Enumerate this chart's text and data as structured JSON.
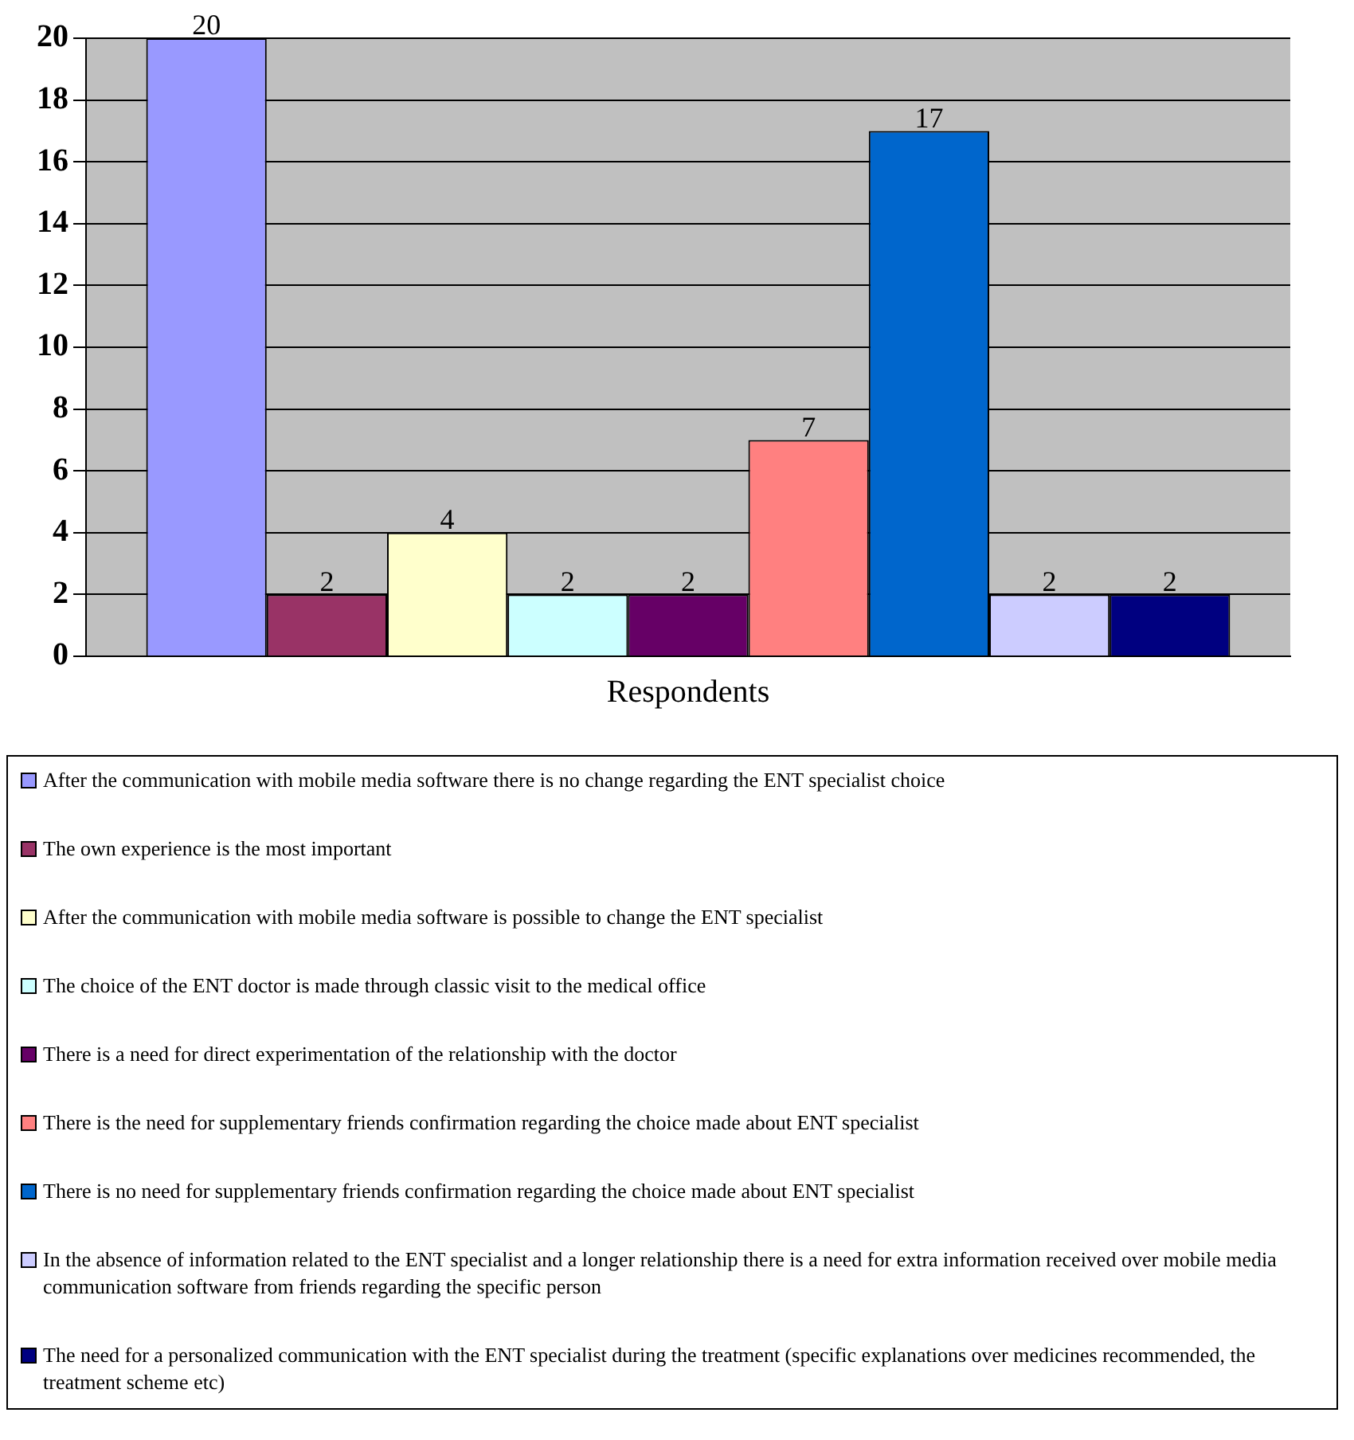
{
  "chart_data": {
    "type": "bar",
    "categories": [
      "Respondents"
    ],
    "series": [
      {
        "name": "After the communication with mobile media software there is no change regarding the ENT specialist choice",
        "color": "#9999ff",
        "values": [
          20
        ]
      },
      {
        "name": "The own experience is the most important",
        "color": "#993366",
        "values": [
          2
        ]
      },
      {
        "name": "After the communication with mobile media software is possible to change the ENT specialist",
        "color": "#ffffcc",
        "values": [
          4
        ]
      },
      {
        "name": "The choice of the ENT doctor is made through classic visit to the medical office",
        "color": "#ccffff",
        "values": [
          2
        ]
      },
      {
        "name": "There is a need for direct experimentation of the relationship with the doctor",
        "color": "#660066",
        "values": [
          2
        ]
      },
      {
        "name": "There is the need for supplementary friends confirmation regarding the choice made about ENT specialist",
        "color": "#ff8080",
        "values": [
          7
        ]
      },
      {
        "name": "There is no need for supplementary friends confirmation regarding the choice made about ENT specialist",
        "color": "#0066cc",
        "values": [
          17
        ]
      },
      {
        "name": "In the absence of information related to the ENT specialist and a longer relationship there is a need for extra information received over mobile media communication software from friends regarding the specific person",
        "color": "#ccccff",
        "values": [
          2
        ]
      },
      {
        "name": "The need for a personalized communication with the ENT specialist during the treatment (specific explanations over medicines recommended, the treatment scheme etc)",
        "color": "#000080",
        "values": [
          2
        ]
      }
    ],
    "ylim": [
      0,
      20
    ],
    "yticks": [
      0,
      2,
      4,
      6,
      8,
      10,
      12,
      14,
      16,
      18,
      20
    ],
    "grid": "y",
    "data_labels": true,
    "legend": "bottom"
  }
}
